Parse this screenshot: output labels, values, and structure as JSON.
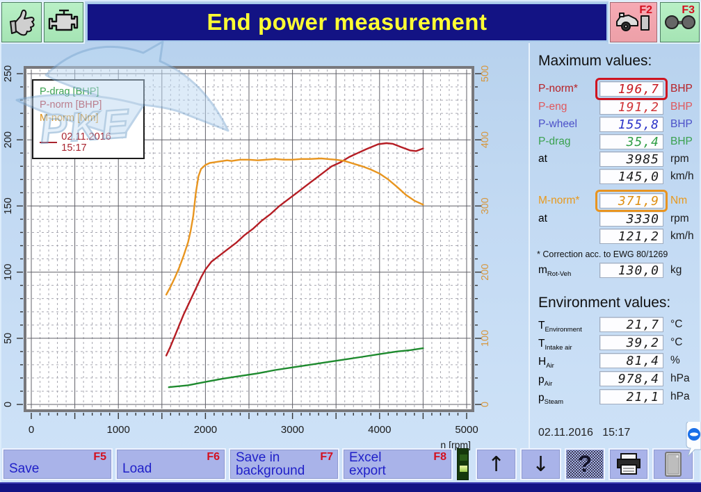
{
  "header": {
    "title": "End power measurement",
    "f2_label": "F2",
    "f3_label": "F3"
  },
  "colors": {
    "pnorm": "#b72025",
    "peng": "#e0575c",
    "pwheel": "#4b50c8",
    "pdrag": "#3aa14f",
    "mnorm": "#e8991c",
    "text": "#1a1a1a",
    "value_pnorm": "#c81a20",
    "value_peng": "#d03438",
    "value_pwheel": "#2c34c8",
    "value_pdrag": "#2f9e45",
    "value_mnorm": "#de8f12",
    "value_black": "#1c1c1c",
    "highlight_red": "#cf1420",
    "highlight_orange": "#e89420",
    "legend_date": "#a8232e",
    "title_text": "#ffff33",
    "title_bg": "#131384"
  },
  "chart_data": {
    "type": "line",
    "x_title": "n [rpm]",
    "x_axis": {
      "min": 0,
      "max": 5000,
      "minor_step": 100,
      "major_step": 500,
      "ticks": [
        0,
        1000,
        2000,
        3000,
        4000,
        5000
      ],
      "color": "#1a1a1a"
    },
    "left_axis": {
      "min": 0,
      "max": 250,
      "minor_step": 10,
      "major_step": 50,
      "ticks": [
        0,
        50,
        100,
        150,
        200,
        250
      ],
      "color": "#1a1a1a"
    },
    "right_axis": {
      "min": 0,
      "max": 500,
      "minor_step": 20,
      "major_step": 100,
      "ticks": [
        0,
        100,
        200,
        300,
        400,
        500
      ],
      "color": "#d6973f"
    },
    "legend": {
      "items": [
        {
          "label": "P-drag [BHP]",
          "color": "#2f9e45"
        },
        {
          "label": "P-norm [BHP]",
          "color": "#b72025"
        },
        {
          "label": "M-norm [Nm]",
          "color": "#eda52d"
        }
      ],
      "date_label": "02.11.2016 15:17",
      "date_color": "#a8232e"
    },
    "series": [
      {
        "name": "P-drag",
        "unit": "BHP",
        "axis": "left",
        "color": "#1e8a2e",
        "points": [
          [
            1580,
            13
          ],
          [
            1800,
            14.5
          ],
          [
            2000,
            17
          ],
          [
            2200,
            19.5
          ],
          [
            2400,
            21.5
          ],
          [
            2600,
            23.5
          ],
          [
            2800,
            26
          ],
          [
            3000,
            28
          ],
          [
            3200,
            30
          ],
          [
            3400,
            32
          ],
          [
            3600,
            34
          ],
          [
            3800,
            36
          ],
          [
            4000,
            38
          ],
          [
            4200,
            40
          ],
          [
            4350,
            41
          ],
          [
            4500,
            42.5
          ]
        ]
      },
      {
        "name": "P-norm",
        "unit": "BHP",
        "axis": "left",
        "color": "#b51d24",
        "points": [
          [
            1550,
            37
          ],
          [
            1600,
            44
          ],
          [
            1650,
            52
          ],
          [
            1700,
            60
          ],
          [
            1750,
            68
          ],
          [
            1800,
            75
          ],
          [
            1850,
            82
          ],
          [
            1900,
            89
          ],
          [
            1950,
            96
          ],
          [
            2000,
            102
          ],
          [
            2070,
            108
          ],
          [
            2150,
            112
          ],
          [
            2250,
            117
          ],
          [
            2350,
            122
          ],
          [
            2450,
            128
          ],
          [
            2550,
            133
          ],
          [
            2650,
            139
          ],
          [
            2750,
            144
          ],
          [
            2850,
            150
          ],
          [
            2950,
            155
          ],
          [
            3050,
            160
          ],
          [
            3150,
            165
          ],
          [
            3250,
            170
          ],
          [
            3350,
            175
          ],
          [
            3450,
            180
          ],
          [
            3550,
            183
          ],
          [
            3650,
            187
          ],
          [
            3750,
            190
          ],
          [
            3850,
            193
          ],
          [
            3985,
            196.7
          ],
          [
            4080,
            197.5
          ],
          [
            4150,
            197
          ],
          [
            4250,
            194.5
          ],
          [
            4350,
            192
          ],
          [
            4420,
            191.5
          ],
          [
            4500,
            193.5
          ]
        ]
      },
      {
        "name": "M-norm",
        "unit": "Nm",
        "axis": "right",
        "color": "#e8951f",
        "points": [
          [
            1550,
            166
          ],
          [
            1600,
            178
          ],
          [
            1650,
            192
          ],
          [
            1700,
            207
          ],
          [
            1750,
            225
          ],
          [
            1800,
            245
          ],
          [
            1830,
            262
          ],
          [
            1860,
            285
          ],
          [
            1890,
            320
          ],
          [
            1920,
            345
          ],
          [
            1950,
            356
          ],
          [
            2000,
            362
          ],
          [
            2050,
            365
          ],
          [
            2100,
            366
          ],
          [
            2150,
            367
          ],
          [
            2200,
            368
          ],
          [
            2250,
            369
          ],
          [
            2300,
            368
          ],
          [
            2350,
            369
          ],
          [
            2400,
            370
          ],
          [
            2500,
            370
          ],
          [
            2600,
            369
          ],
          [
            2700,
            370
          ],
          [
            2800,
            371
          ],
          [
            2900,
            370
          ],
          [
            3000,
            370
          ],
          [
            3100,
            371
          ],
          [
            3200,
            371
          ],
          [
            3330,
            371.9
          ],
          [
            3400,
            371
          ],
          [
            3500,
            370
          ],
          [
            3600,
            368
          ],
          [
            3700,
            364
          ],
          [
            3800,
            360
          ],
          [
            3900,
            355
          ],
          [
            4000,
            349
          ],
          [
            4100,
            340
          ],
          [
            4200,
            329
          ],
          [
            4300,
            317
          ],
          [
            4400,
            308
          ],
          [
            4500,
            302
          ]
        ]
      }
    ]
  },
  "maximum": {
    "heading": "Maximum values:",
    "rows": [
      {
        "label": "P-norm*",
        "value": "196,7",
        "unit": "BHP"
      },
      {
        "label": "P-eng",
        "value": "191,2",
        "unit": "BHP"
      },
      {
        "label": "P-wheel",
        "value": "155,8",
        "unit": "BHP"
      },
      {
        "label": "P-drag",
        "value": "35,4",
        "unit": "BHP"
      },
      {
        "label": "at",
        "value": "3985",
        "unit": "rpm"
      },
      {
        "label": "",
        "value": "145,0",
        "unit": "km/h"
      }
    ],
    "mnorm_rows": [
      {
        "label": "M-norm*",
        "value": "371,9",
        "unit": "Nm"
      },
      {
        "label": "at",
        "value": "3330",
        "unit": "rpm"
      },
      {
        "label": "",
        "value": "121,2",
        "unit": "km/h"
      }
    ],
    "correction_note": "* Correction acc. to EWG 80/1269",
    "mrot": {
      "main": "m",
      "sub": "Rot-Veh",
      "value": "130,0",
      "unit": "kg"
    }
  },
  "environment": {
    "heading": "Environment values:",
    "rows": [
      {
        "main": "T",
        "sub": "Environment",
        "value": "21,7",
        "unit": "°C"
      },
      {
        "main": "T",
        "sub": "Intake air",
        "value": "39,2",
        "unit": "°C"
      },
      {
        "main": "H",
        "sub": "Air",
        "value": "81,4",
        "unit": "%"
      },
      {
        "main": "p",
        "sub": "Air",
        "value": "978,4",
        "unit": "hPa"
      },
      {
        "main": "p",
        "sub": "Steam",
        "value": "21,1",
        "unit": "hPa"
      }
    ],
    "date": "02.11.2016",
    "time": "15:17"
  },
  "toolbar": {
    "buttons": [
      {
        "line1": "Save",
        "line2": "",
        "fkey": "F5"
      },
      {
        "line1": "Load",
        "line2": "",
        "fkey": "F6"
      },
      {
        "line1": "Save in",
        "line2": "background",
        "fkey": "F7"
      },
      {
        "line1": "Excel",
        "line2": "export",
        "fkey": "F8"
      }
    ],
    "up_arrow": "↑",
    "down_arrow": "↓",
    "help": "?"
  }
}
